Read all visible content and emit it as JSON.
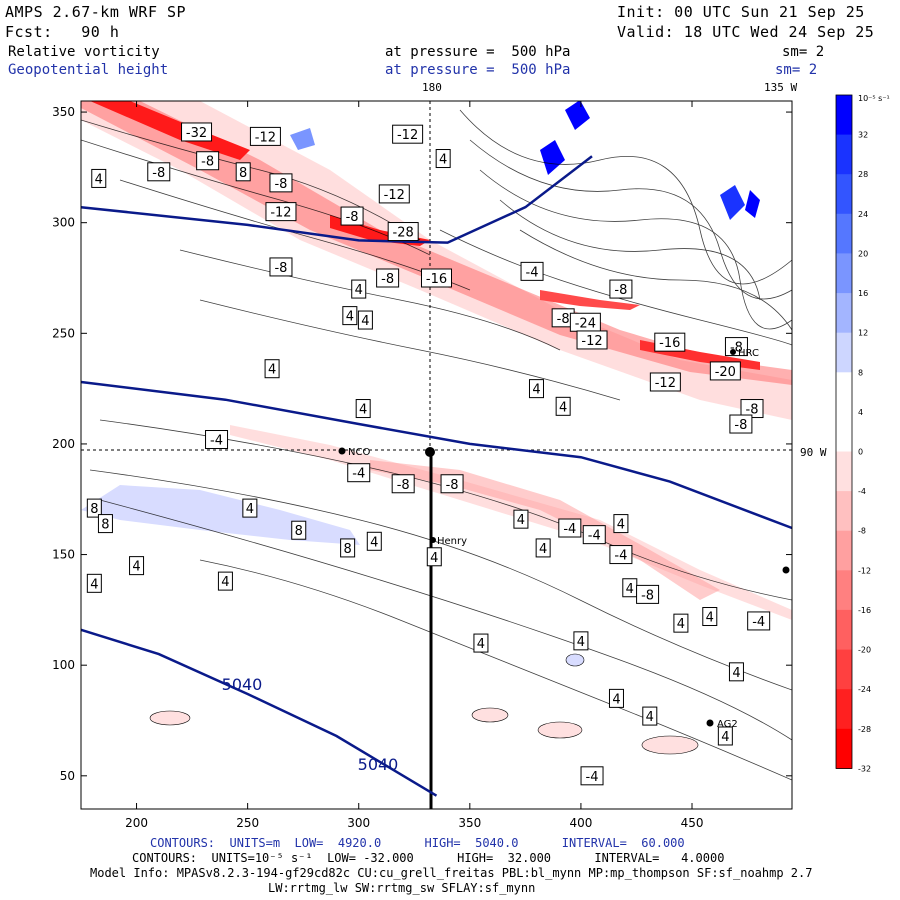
{
  "header": {
    "model": "AMPS 2.67-km WRF SP",
    "forecast": "Fcst:   90 h",
    "init": "Init: 00 UTC Sun 21 Sep 25",
    "valid": "Valid: 18 UTC Wed 24 Sep 25",
    "field1": "Relative vorticity",
    "field2": "Geopotential height",
    "pressure1": "at pressure =  500 hPa",
    "pressure2": "at pressure =  500 hPa",
    "sm1": "sm= 2",
    "sm2": "sm= 2"
  },
  "map_labels": {
    "lon_top_180": "180",
    "lon_top_135w": "135 W",
    "lon_right_90w": "90 W",
    "stations": [
      "NCO",
      "Henry",
      "AG2",
      "HRC"
    ]
  },
  "footer": {
    "contours1": "CONTOURS:  UNITS=m  LOW=  4920.0      HIGH=  5040.0      INTERVAL=  60.000",
    "contours2": "CONTOURS:  UNITS=10⁻⁵ s⁻¹  LOW= -32.000      HIGH=  32.000      INTERVAL=   4.0000",
    "model_info": "Model Info: MPASv8.2.3-194-gf29cd82c CU:cu_grell_freitas PBL:bl_mynn MP:mp_thompson SF:sf_noahmp 2.7",
    "model_info2": "LW:rrtmg_lw SW:rrtmg_sw SFLAY:sf_mynn"
  },
  "colorbar": {
    "unit": "10⁻⁵ s⁻¹",
    "ticks": [
      "32",
      "28",
      "24",
      "20",
      "16",
      "12",
      "8",
      "4",
      "0",
      "-4",
      "-8",
      "-12",
      "-16",
      "-20",
      "-24",
      "-28",
      "-32"
    ],
    "colors": [
      "#0000ff",
      "#1a33ff",
      "#3355ff",
      "#5577ff",
      "#7a95ff",
      "#a3b5ff",
      "#cdd6ff",
      "#ffffff",
      "#ffffff",
      "#ffe0e0",
      "#ffc0c0",
      "#ffa0a0",
      "#ff8080",
      "#ff6060",
      "#ff4040",
      "#ff2020",
      "#ff0000"
    ]
  },
  "chart_data": {
    "type": "contour",
    "title": "Relative vorticity / Geopotential height at 500 hPa",
    "x_ticks": [
      200,
      250,
      300,
      350,
      400,
      450
    ],
    "y_ticks": [
      50,
      100,
      150,
      200,
      250,
      300,
      350
    ],
    "xlim": [
      175,
      495
    ],
    "ylim": [
      35,
      355
    ],
    "height_contours": [
      {
        "label": "5040",
        "points": [
          [
            175,
            116
          ],
          [
            210,
            105
          ],
          [
            250,
            87
          ],
          [
            290,
            68
          ],
          [
            315,
            53
          ],
          [
            335,
            41
          ]
        ]
      },
      {
        "label": "",
        "points": [
          [
            175,
            228
          ],
          [
            240,
            220
          ],
          [
            300,
            209
          ],
          [
            350,
            200
          ],
          [
            400,
            194
          ],
          [
            440,
            183
          ],
          [
            495,
            162
          ]
        ]
      },
      {
        "label": "",
        "points": [
          [
            175,
            307
          ],
          [
            250,
            299
          ],
          [
            300,
            292
          ],
          [
            340,
            291
          ],
          [
            375,
            307
          ],
          [
            405,
            330
          ]
        ]
      }
    ],
    "height_contour_labels": [
      "5040",
      "5040"
    ],
    "vorticity_labels": [
      {
        "x": 227,
        "y": 341,
        "v": "-32"
      },
      {
        "x": 258,
        "y": 339,
        "v": "-12"
      },
      {
        "x": 322,
        "y": 340,
        "v": "-12"
      },
      {
        "x": 338,
        "y": 329,
        "v": "4"
      },
      {
        "x": 232,
        "y": 328,
        "v": "-8"
      },
      {
        "x": 248,
        "y": 323,
        "v": "8"
      },
      {
        "x": 210,
        "y": 323,
        "v": "-8"
      },
      {
        "x": 265,
        "y": 318,
        "v": "-8"
      },
      {
        "x": 316,
        "y": 313,
        "v": "-12"
      },
      {
        "x": 265,
        "y": 305,
        "v": "-12"
      },
      {
        "x": 297,
        "y": 303,
        "v": "-8"
      },
      {
        "x": 320,
        "y": 296,
        "v": "-28"
      },
      {
        "x": 265,
        "y": 280,
        "v": "-8"
      },
      {
        "x": 313,
        "y": 275,
        "v": "-8"
      },
      {
        "x": 335,
        "y": 275,
        "v": "-16"
      },
      {
        "x": 378,
        "y": 278,
        "v": "-4"
      },
      {
        "x": 392,
        "y": 257,
        "v": "-8"
      },
      {
        "x": 402,
        "y": 255,
        "v": "-24"
      },
      {
        "x": 418,
        "y": 270,
        "v": "-8"
      },
      {
        "x": 405,
        "y": 247,
        "v": "-12"
      },
      {
        "x": 440,
        "y": 246,
        "v": "-16"
      },
      {
        "x": 470,
        "y": 244,
        "v": "-8"
      },
      {
        "x": 465,
        "y": 233,
        "v": "-20"
      },
      {
        "x": 438,
        "y": 228,
        "v": "-12"
      },
      {
        "x": 183,
        "y": 320,
        "v": "4"
      },
      {
        "x": 296,
        "y": 258,
        "v": "4"
      },
      {
        "x": 303,
        "y": 256,
        "v": "4"
      },
      {
        "x": 300,
        "y": 270,
        "v": "4"
      },
      {
        "x": 261,
        "y": 234,
        "v": "4"
      },
      {
        "x": 302,
        "y": 216,
        "v": "4"
      },
      {
        "x": 380,
        "y": 225,
        "v": "4"
      },
      {
        "x": 392,
        "y": 217,
        "v": "4"
      },
      {
        "x": 477,
        "y": 216,
        "v": "-8"
      },
      {
        "x": 472,
        "y": 209,
        "v": "-8"
      },
      {
        "x": 236,
        "y": 202,
        "v": "-4"
      },
      {
        "x": 300,
        "y": 187,
        "v": "-4"
      },
      {
        "x": 320,
        "y": 182,
        "v": "-8"
      },
      {
        "x": 342,
        "y": 182,
        "v": "-8"
      },
      {
        "x": 373,
        "y": 166,
        "v": "4"
      },
      {
        "x": 395,
        "y": 162,
        "v": "-4"
      },
      {
        "x": 406,
        "y": 159,
        "v": "-4"
      },
      {
        "x": 418,
        "y": 164,
        "v": "4"
      },
      {
        "x": 418,
        "y": 150,
        "v": "-4"
      },
      {
        "x": 251,
        "y": 171,
        "v": "4"
      },
      {
        "x": 181,
        "y": 171,
        "v": "8"
      },
      {
        "x": 186,
        "y": 164,
        "v": "8"
      },
      {
        "x": 273,
        "y": 161,
        "v": "8"
      },
      {
        "x": 295,
        "y": 153,
        "v": "8"
      },
      {
        "x": 307,
        "y": 156,
        "v": "4"
      },
      {
        "x": 334,
        "y": 149,
        "v": "4"
      },
      {
        "x": 383,
        "y": 153,
        "v": "4"
      },
      {
        "x": 200,
        "y": 145,
        "v": "4"
      },
      {
        "x": 181,
        "y": 137,
        "v": "4"
      },
      {
        "x": 240,
        "y": 138,
        "v": "4"
      },
      {
        "x": 422,
        "y": 135,
        "v": "4"
      },
      {
        "x": 430,
        "y": 132,
        "v": "-8"
      },
      {
        "x": 458,
        "y": 122,
        "v": "4"
      },
      {
        "x": 480,
        "y": 120,
        "v": "-4"
      },
      {
        "x": 445,
        "y": 119,
        "v": "4"
      },
      {
        "x": 355,
        "y": 110,
        "v": "4"
      },
      {
        "x": 400,
        "y": 111,
        "v": "4"
      },
      {
        "x": 470,
        "y": 97,
        "v": "4"
      },
      {
        "x": 416,
        "y": 85,
        "v": "4"
      },
      {
        "x": 431,
        "y": 77,
        "v": "4"
      },
      {
        "x": 465,
        "y": 68,
        "v": "4"
      },
      {
        "x": 405,
        "y": 50,
        "v": "-4"
      }
    ]
  }
}
